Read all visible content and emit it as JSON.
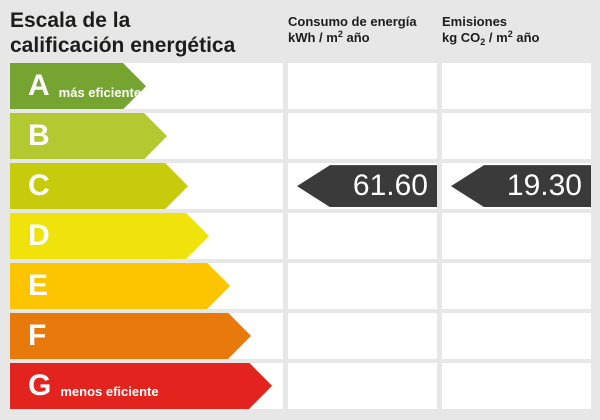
{
  "header": {
    "title_line1": "Escala de la",
    "title_line2": "calificación energética",
    "consumo": {
      "title": "Consumo de energía",
      "unit_prefix": "kWh / m",
      "unit_sup": "2",
      "unit_suffix": " año"
    },
    "emisiones": {
      "title": "Emisiones",
      "unit_prefix": "kg CO",
      "unit_sub": "2",
      "unit_mid": " / m",
      "unit_sup": "2",
      "unit_suffix": " año"
    }
  },
  "scale": {
    "rows": [
      {
        "letter": "A",
        "label": "más eficiente",
        "color": "#76a431",
        "arrow_width": 136
      },
      {
        "letter": "B",
        "label": "",
        "color": "#b3c932",
        "arrow_width": 157
      },
      {
        "letter": "C",
        "label": "",
        "color": "#c6cc0c",
        "arrow_width": 178
      },
      {
        "letter": "D",
        "label": "",
        "color": "#f0e30c",
        "arrow_width": 199
      },
      {
        "letter": "E",
        "label": "",
        "color": "#fdc400",
        "arrow_width": 220
      },
      {
        "letter": "F",
        "label": "",
        "color": "#e8790b",
        "arrow_width": 241
      },
      {
        "letter": "G",
        "label": "menos eficiente",
        "color": "#e2231e",
        "arrow_width": 262
      }
    ]
  },
  "values": {
    "rating_letter": "C",
    "consumo_value": "61.60",
    "emisiones_value": "19.30",
    "arrow_color": "#3a3a3a"
  },
  "colors": {
    "background": "#e7e7e7",
    "cell_background": "#ffffff",
    "text": "#1d1d1b"
  },
  "chart_data": {
    "type": "bar",
    "title": "Escala de la calificación energética",
    "categories": [
      "A",
      "B",
      "C",
      "D",
      "E",
      "F",
      "G"
    ],
    "bar_colors": [
      "#76a431",
      "#b3c932",
      "#c6cc0c",
      "#f0e30c",
      "#fdc400",
      "#e8790b",
      "#e2231e"
    ],
    "bar_relative_lengths": [
      136,
      157,
      178,
      199,
      220,
      241,
      262
    ],
    "category_labels": {
      "A": "más eficiente",
      "G": "menos eficiente"
    },
    "indicators": [
      {
        "metric": "Consumo de energía",
        "unit": "kWh/m² año",
        "value": 61.6,
        "rating": "C"
      },
      {
        "metric": "Emisiones",
        "unit": "kg CO₂/m² año",
        "value": 19.3,
        "rating": "C"
      }
    ],
    "legend_position": "none",
    "grid": false
  }
}
